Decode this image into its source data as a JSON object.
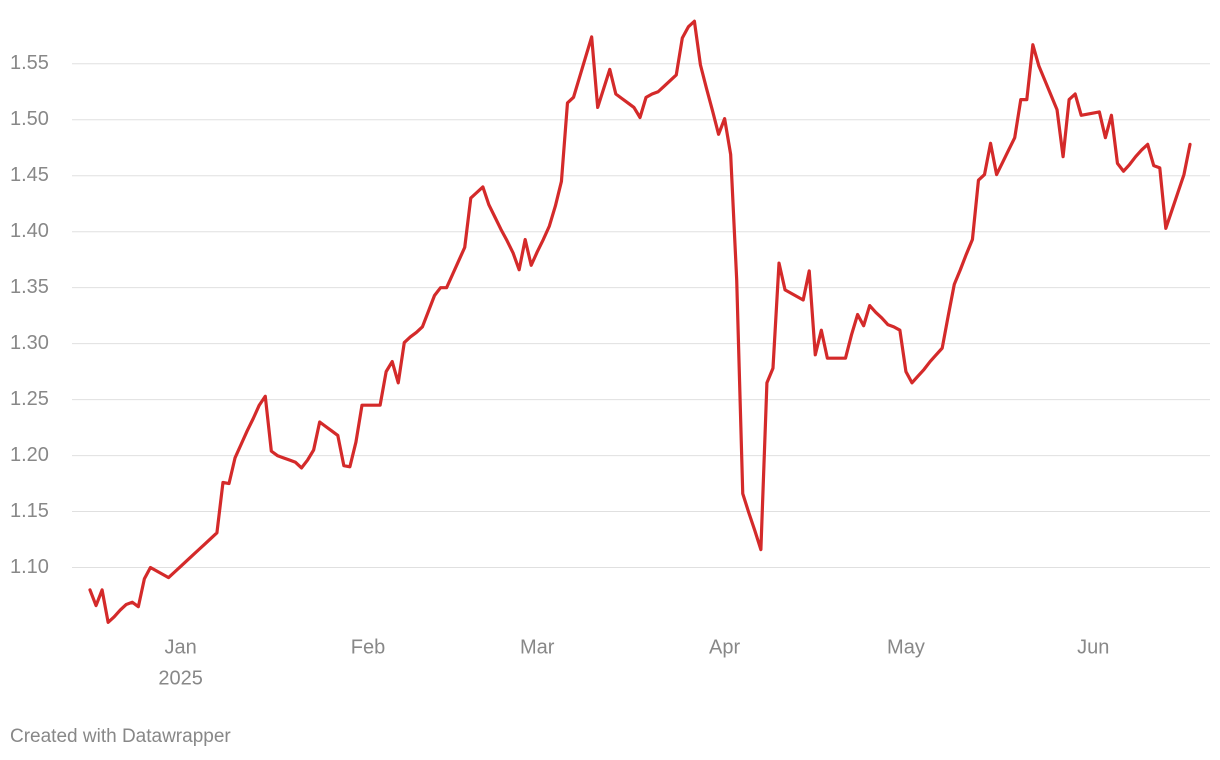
{
  "chart_data": {
    "type": "line",
    "categories": [
      null,
      null,
      null,
      null,
      null,
      null,
      null,
      null,
      null,
      null,
      null,
      null,
      null,
      null,
      null,
      "Jan",
      null,
      null,
      null,
      null,
      null,
      null,
      null,
      null,
      null,
      null,
      null,
      null,
      null,
      null,
      null,
      null,
      null,
      null,
      null,
      null,
      null,
      null,
      null,
      null,
      null,
      null,
      null,
      null,
      null,
      null,
      "Feb",
      null,
      null,
      null,
      null,
      null,
      null,
      null,
      null,
      null,
      null,
      null,
      null,
      null,
      null,
      null,
      null,
      null,
      null,
      null,
      null,
      null,
      null,
      null,
      null,
      null,
      null,
      null,
      "Mar",
      null,
      null,
      null,
      null,
      null,
      null,
      null,
      null,
      null,
      null,
      null,
      null,
      null,
      null,
      null,
      null,
      null,
      null,
      null,
      null,
      null,
      null,
      null,
      null,
      null,
      null,
      null,
      null,
      null,
      null,
      "Apr",
      null,
      null,
      null,
      null,
      null,
      null,
      null,
      null,
      null,
      null,
      null,
      null,
      null,
      null,
      null,
      null,
      null,
      null,
      null,
      null,
      null,
      null,
      null,
      null,
      null,
      null,
      null,
      null,
      null,
      "May",
      null,
      null,
      null,
      null,
      null,
      null,
      null,
      null,
      null,
      null,
      null,
      null,
      null,
      null,
      null,
      null,
      null,
      null,
      null,
      null,
      null,
      null,
      null,
      null,
      null,
      null,
      null,
      null,
      null,
      null,
      "Jun",
      null,
      null,
      null,
      null,
      null,
      null,
      null,
      null,
      null,
      null,
      null,
      null,
      null,
      null,
      null,
      null
    ],
    "x_sublabel": "2025",
    "series": [
      {
        "color": "#d42a2a",
        "values": [
          1.08,
          1.066,
          1.08,
          1.051,
          1.056,
          1.062,
          1.067,
          1.069,
          1.065,
          1.09,
          1.1,
          1.097,
          1.094,
          1.091,
          1.096,
          1.101,
          1.106,
          1.111,
          1.116,
          1.121,
          1.126,
          1.131,
          1.176,
          1.175,
          1.198,
          1.21,
          1.222,
          1.233,
          1.245,
          1.253,
          1.204,
          1.2,
          1.198,
          1.196,
          1.194,
          1.189,
          1.196,
          1.205,
          1.23,
          1.226,
          1.222,
          1.218,
          1.191,
          1.19,
          1.212,
          1.245,
          1.245,
          1.245,
          1.245,
          1.275,
          1.284,
          1.265,
          1.301,
          1.306,
          1.31,
          1.315,
          1.329,
          1.343,
          1.35,
          1.35,
          1.362,
          1.374,
          1.386,
          1.43,
          1.435,
          1.44,
          1.424,
          1.413,
          1.402,
          1.392,
          1.381,
          1.366,
          1.393,
          1.37,
          1.382,
          1.393,
          1.405,
          1.423,
          1.445,
          1.515,
          1.52,
          1.538,
          1.556,
          1.574,
          1.511,
          1.528,
          1.545,
          1.523,
          1.519,
          1.515,
          1.511,
          1.502,
          1.52,
          1.523,
          1.525,
          1.53,
          1.535,
          1.54,
          1.573,
          1.583,
          1.588,
          1.549,
          1.528,
          1.508,
          1.487,
          1.501,
          1.469,
          1.357,
          1.166,
          1.149,
          1.133,
          1.116,
          1.265,
          1.278,
          1.372,
          1.348,
          1.345,
          1.342,
          1.339,
          1.365,
          1.29,
          1.312,
          1.287,
          1.287,
          1.287,
          1.287,
          1.308,
          1.326,
          1.316,
          1.334,
          1.328,
          1.323,
          1.317,
          1.315,
          1.312,
          1.275,
          1.265,
          1.271,
          1.277,
          1.284,
          1.29,
          1.296,
          1.325,
          1.353,
          1.366,
          1.38,
          1.393,
          1.446,
          1.451,
          1.479,
          1.451,
          1.462,
          1.473,
          1.484,
          1.518,
          1.518,
          1.567,
          1.548,
          1.535,
          1.522,
          1.509,
          1.467,
          1.518,
          1.523,
          1.504,
          1.505,
          1.506,
          1.507,
          1.484,
          1.504,
          1.461,
          1.454,
          1.46,
          1.467,
          1.473,
          1.478,
          1.459,
          1.457,
          1.403,
          1.419,
          1.435,
          1.451,
          1.478
        ]
      }
    ],
    "ylim": [
      1.05,
      1.59
    ],
    "yticks": [
      {
        "value": 1.1,
        "label": "1.10"
      },
      1.15,
      {
        "value": 1.2,
        "label": "1.20"
      },
      1.25,
      {
        "value": 1.3,
        "label": "1.30"
      },
      1.35,
      {
        "value": 1.4,
        "label": "1.40"
      },
      1.45,
      {
        "value": 1.5,
        "label": "1.50"
      },
      1.55
    ],
    "grid": true,
    "footer": "Created with Datawrapper"
  }
}
